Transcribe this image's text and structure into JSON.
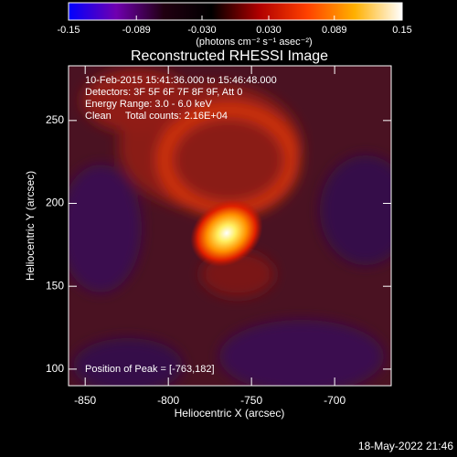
{
  "chart_data": {
    "type": "image",
    "title": "Reconstructed RHESSI Image",
    "xlabel": "Heliocentric X (arcsec)",
    "ylabel": "Heliocentric Y (arcsec)",
    "xlim": [
      -860,
      -666
    ],
    "ylim": [
      90,
      283
    ],
    "xticks": [
      -850,
      -800,
      -750,
      -700
    ],
    "yticks": [
      100,
      150,
      200,
      250
    ],
    "annotations": [
      "10-Feb-2015 15:41:36.000 to 15:46:48.000",
      "Detectors: 3F 5F 6F 7F 8F 9F, Att 0",
      "Energy Range: 3.0 - 6.0 keV",
      "Clean     Total counts: 2.16E+04"
    ],
    "peak_label": "Position of Peak = [-763,182]",
    "colorbar": {
      "label": "(photons cm⁻² s⁻¹ asec⁻²)",
      "xlim": [
        -0.15,
        0.15
      ],
      "xticks": [
        -0.15,
        -0.089,
        {
          "value": -0.03,
          "label": "-0.030"
        },
        {
          "value": 0.03,
          "label": "0.030"
        },
        0.089,
        0.15
      ],
      "colors": [
        "#0000ff",
        "#7000b0",
        "#200010",
        "#000000",
        "#b00000",
        "#ff4000",
        "#ffb000",
        "#ffffff"
      ]
    }
  },
  "timestamp": "18-May-2022 21:46"
}
